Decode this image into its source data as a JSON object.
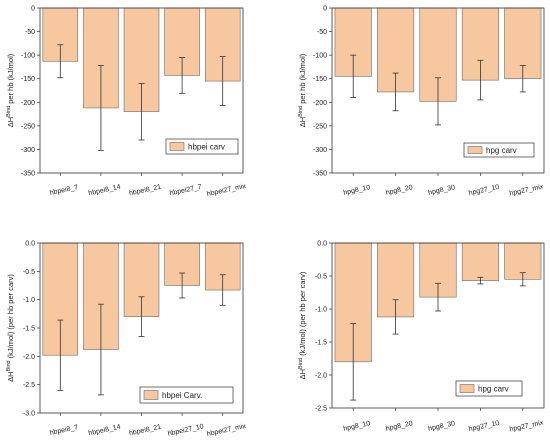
{
  "colors": {
    "bar": "#f7c8a0",
    "bar_edge": "#6b6b6b",
    "axis": "#333333",
    "error": "#333333"
  },
  "chart_data": [
    {
      "type": "bar",
      "categories": [
        "hbpei8_7",
        "hbpei8_14",
        "hbpei8_21",
        "hbpei27_7",
        "hbpei27_mix"
      ],
      "series": [
        {
          "name": "hbpei carv",
          "values": [
            -113,
            -212,
            -220,
            -143,
            -155
          ],
          "errors": [
            35,
            90,
            60,
            38,
            52
          ]
        }
      ],
      "ylabel_prefix": "ΔH",
      "ylabel_sup": "Bind",
      "ylabel_suffix": " per hb (kJ/mol)",
      "ylim": [
        -350,
        0
      ],
      "yticks": [
        0,
        -50,
        -100,
        -150,
        -200,
        -250,
        -300,
        -350
      ],
      "ytick_labels": [
        "0",
        "-50",
        "-100",
        "-150",
        "-200",
        "-250",
        "-300",
        "-350"
      ],
      "legend_position": "center-right"
    },
    {
      "type": "bar",
      "categories": [
        "hpg8_10",
        "hpg8_20",
        "hpg8_30",
        "hpg27_10",
        "hpg27_mix"
      ],
      "series": [
        {
          "name": "hpg carv",
          "values": [
            -145,
            -178,
            -198,
            -153,
            -150
          ],
          "errors": [
            45,
            40,
            50,
            42,
            28
          ]
        }
      ],
      "ylabel_prefix": "ΔH",
      "ylabel_sup": "Bind",
      "ylabel_suffix": " per hb (kJ/mol)",
      "ylim": [
        -350,
        0
      ],
      "yticks": [
        0,
        -50,
        -100,
        -150,
        -200,
        -250,
        -300,
        -350
      ],
      "ytick_labels": [
        "0",
        "-50",
        "-100",
        "-150",
        "-200",
        "-250",
        "-300",
        "-350"
      ],
      "legend_position": "center-right"
    },
    {
      "type": "bar",
      "categories": [
        "hbpei8_7",
        "hbpei8_14",
        "hbpei8_21",
        "hbpei27_10",
        "hbpei27_mix"
      ],
      "series": [
        {
          "name": "hbpei Carv.",
          "values": [
            -1.98,
            -1.88,
            -1.3,
            -0.75,
            -0.83
          ],
          "errors": [
            0.62,
            0.8,
            0.35,
            0.22,
            0.27
          ]
        }
      ],
      "ylabel_prefix": "ΔH",
      "ylabel_sup": "Bind",
      "ylabel_suffix": " (kJ/mol) (per hb per carv)",
      "ylim": [
        -3.0,
        0
      ],
      "yticks": [
        0,
        -0.5,
        -1.0,
        -1.5,
        -2.0,
        -2.5,
        -3.0
      ],
      "ytick_labels": [
        "0.0",
        "-0.5",
        "-1.0",
        "-1.5",
        "-2.0",
        "-2.5",
        "-3.0"
      ],
      "legend_position": "bottom-right"
    },
    {
      "type": "bar",
      "categories": [
        "hpg8_10",
        "hpg8_20",
        "hpg8_30",
        "hpg27_10",
        "hpg27_mix"
      ],
      "series": [
        {
          "name": "hpg carv",
          "values": [
            -1.8,
            -1.12,
            -0.82,
            -0.57,
            -0.55
          ],
          "errors": [
            0.58,
            0.26,
            0.21,
            0.05,
            0.1
          ]
        }
      ],
      "ylabel_prefix": "ΔH",
      "ylabel_sup": "Bind",
      "ylabel_suffix": " (kJ/mol) (per hb per carv)",
      "ylim": [
        -2.5,
        0
      ],
      "yticks": [
        0,
        -0.5,
        -1.0,
        -1.5,
        -2.0,
        -2.5
      ],
      "ytick_labels": [
        "0.0",
        "-0.5",
        "-1.0",
        "-1.5",
        "-2.0",
        "-2.5"
      ],
      "legend_position": "bottom-right"
    }
  ]
}
